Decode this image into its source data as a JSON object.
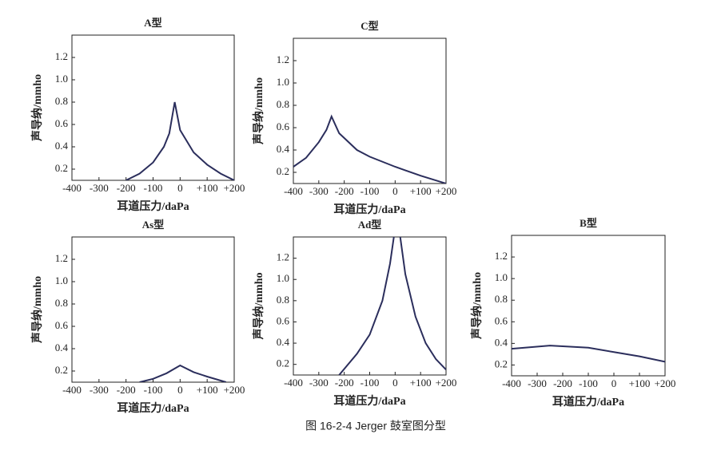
{
  "caption": "图 16-2-4 Jerger 鼓室图分型",
  "chart_data": [
    {
      "type": "line",
      "title": "A型",
      "xlabel": "耳道压力/daPa",
      "ylabel": "声导纳/mmho",
      "color": "#2b2e5c",
      "x": [
        -200,
        -150,
        -100,
        -60,
        -40,
        -20,
        0,
        50,
        100,
        150,
        200
      ],
      "values": [
        0.1,
        0.16,
        0.26,
        0.4,
        0.52,
        0.8,
        0.55,
        0.35,
        0.24,
        0.16,
        0.1
      ],
      "xlim": [
        -400,
        200
      ],
      "ylim": [
        0.1,
        1.4
      ],
      "xticks": [
        -400,
        -300,
        -200,
        -100,
        0,
        {
          "value": 100,
          "label": "+100"
        },
        {
          "value": 200,
          "label": "+200"
        }
      ],
      "yticks": [
        0.2,
        0.4,
        0.6,
        0.8,
        {
          "value": 1,
          "label": "1.0"
        },
        1.2
      ]
    },
    {
      "type": "line",
      "title": "C型",
      "xlabel": "耳道压力/daPa",
      "ylabel": "声导纳/mmho",
      "color": "#2b2e5c",
      "x": [
        -400,
        -350,
        -300,
        -270,
        -250,
        -220,
        -150,
        -100,
        0,
        100,
        200
      ],
      "values": [
        0.25,
        0.33,
        0.47,
        0.58,
        0.7,
        0.55,
        0.4,
        0.34,
        0.25,
        0.17,
        0.1
      ],
      "xlim": [
        -400,
        200
      ],
      "ylim": [
        0.1,
        1.4
      ],
      "xticks": [
        -400,
        -300,
        -200,
        -100,
        0,
        {
          "value": 100,
          "label": "+100"
        },
        {
          "value": 200,
          "label": "+200"
        }
      ],
      "yticks": [
        0.2,
        0.4,
        0.6,
        0.8,
        {
          "value": 1,
          "label": "1.0"
        },
        1.2
      ]
    },
    {
      "type": "line",
      "title": "As型",
      "xlabel": "耳道压力/daPa",
      "ylabel": "声导纳/mmho",
      "color": "#2b2e5c",
      "x": [
        -150,
        -100,
        -50,
        0,
        50,
        100,
        170
      ],
      "values": [
        0.1,
        0.13,
        0.18,
        0.25,
        0.19,
        0.15,
        0.1
      ],
      "xlim": [
        -400,
        200
      ],
      "ylim": [
        0.1,
        1.4
      ],
      "xticks": [
        -400,
        -300,
        -200,
        -100,
        0,
        {
          "value": 100,
          "label": "+100"
        },
        {
          "value": 200,
          "label": "+200"
        }
      ],
      "yticks": [
        0.2,
        0.4,
        0.6,
        0.8,
        {
          "value": 1,
          "label": "1.0"
        },
        1.2
      ]
    },
    {
      "type": "line",
      "title": "Ad型",
      "xlabel": "耳道压力/daPa",
      "ylabel": "声导纳/mmho",
      "color": "#2b2e5c",
      "x": [
        -220,
        -150,
        -100,
        -50,
        -20,
        -5,
        5,
        20,
        40,
        80,
        120,
        160,
        200
      ],
      "values": [
        0.1,
        0.3,
        0.48,
        0.8,
        1.15,
        1.4,
        null,
        1.4,
        1.05,
        0.65,
        0.4,
        0.25,
        0.15
      ],
      "xlim": [
        -400,
        200
      ],
      "ylim": [
        0.1,
        1.4
      ],
      "xticks": [
        -400,
        -300,
        -200,
        -100,
        0,
        {
          "value": 100,
          "label": "+100"
        },
        {
          "value": 200,
          "label": "+200"
        }
      ],
      "yticks": [
        0.2,
        0.4,
        0.6,
        0.8,
        {
          "value": 1,
          "label": "1.0"
        },
        1.2
      ]
    },
    {
      "type": "line",
      "title": "B型",
      "xlabel": "耳道压力/daPa",
      "ylabel": "声导纳/mmho",
      "color": "#2b2e5c",
      "x": [
        -400,
        -250,
        -100,
        0,
        100,
        200
      ],
      "values": [
        0.35,
        0.38,
        0.36,
        0.32,
        0.28,
        0.23
      ],
      "xlim": [
        -400,
        200
      ],
      "ylim": [
        0.1,
        1.4
      ],
      "xticks": [
        -400,
        -300,
        -200,
        -100,
        0,
        {
          "value": 100,
          "label": "+100"
        },
        {
          "value": 200,
          "label": "+200"
        }
      ],
      "yticks": [
        0.2,
        0.4,
        0.6,
        0.8,
        {
          "value": 1,
          "label": "1.0"
        },
        1.2
      ]
    }
  ]
}
